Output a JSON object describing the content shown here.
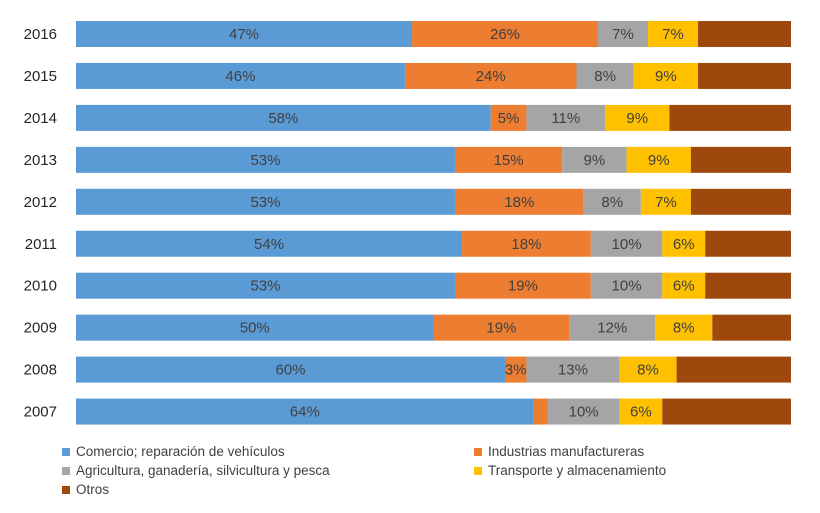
{
  "chart_data": {
    "type": "bar",
    "orientation": "horizontal",
    "stacked": "percent",
    "title": "",
    "xlabel": "",
    "ylabel": "",
    "xlim": [
      0,
      100
    ],
    "grid": false,
    "legend_position": "bottom",
    "categories": [
      "2016",
      "2015",
      "2014",
      "2013",
      "2012",
      "2011",
      "2010",
      "2009",
      "2008",
      "2007"
    ],
    "series": [
      {
        "name": "Comercio; reparación de vehículos",
        "color": "#5B9BD5",
        "values": [
          47,
          46,
          58,
          53,
          53,
          54,
          53,
          50,
          60,
          64
        ],
        "labels": [
          "47%",
          "46%",
          "58%",
          "53%",
          "53%",
          "54%",
          "53%",
          "50%",
          "60%",
          "64%"
        ]
      },
      {
        "name": "Industrias manufactureras",
        "color": "#ED7D31",
        "values": [
          26,
          24,
          5,
          15,
          18,
          18,
          19,
          19,
          3,
          2
        ],
        "labels": [
          "26%",
          "24%",
          "5%",
          "15%",
          "18%",
          "18%",
          "19%",
          "19%",
          "3%",
          ""
        ]
      },
      {
        "name": "Agricultura, ganadería,  silvicultura y pesca",
        "color": "#A5A5A5",
        "values": [
          7,
          8,
          11,
          9,
          8,
          10,
          10,
          12,
          13,
          10
        ],
        "labels": [
          "7%",
          "8%",
          "11%",
          "9%",
          "8%",
          "10%",
          "10%",
          "12%",
          "13%",
          "10%"
        ]
      },
      {
        "name": "Transporte y almacenamiento",
        "color": "#FFC000",
        "values": [
          7,
          9,
          9,
          9,
          7,
          6,
          6,
          8,
          8,
          6
        ],
        "labels": [
          "7%",
          "9%",
          "9%",
          "9%",
          "7%",
          "6%",
          "6%",
          "8%",
          "8%",
          "6%"
        ]
      },
      {
        "name": "Otros",
        "color": "#9E480E",
        "values": [
          13,
          13,
          17,
          14,
          14,
          12,
          12,
          11,
          16,
          18
        ],
        "labels": [
          "",
          "",
          "",
          "",
          "",
          "",
          "",
          "",
          "",
          ""
        ]
      }
    ]
  }
}
